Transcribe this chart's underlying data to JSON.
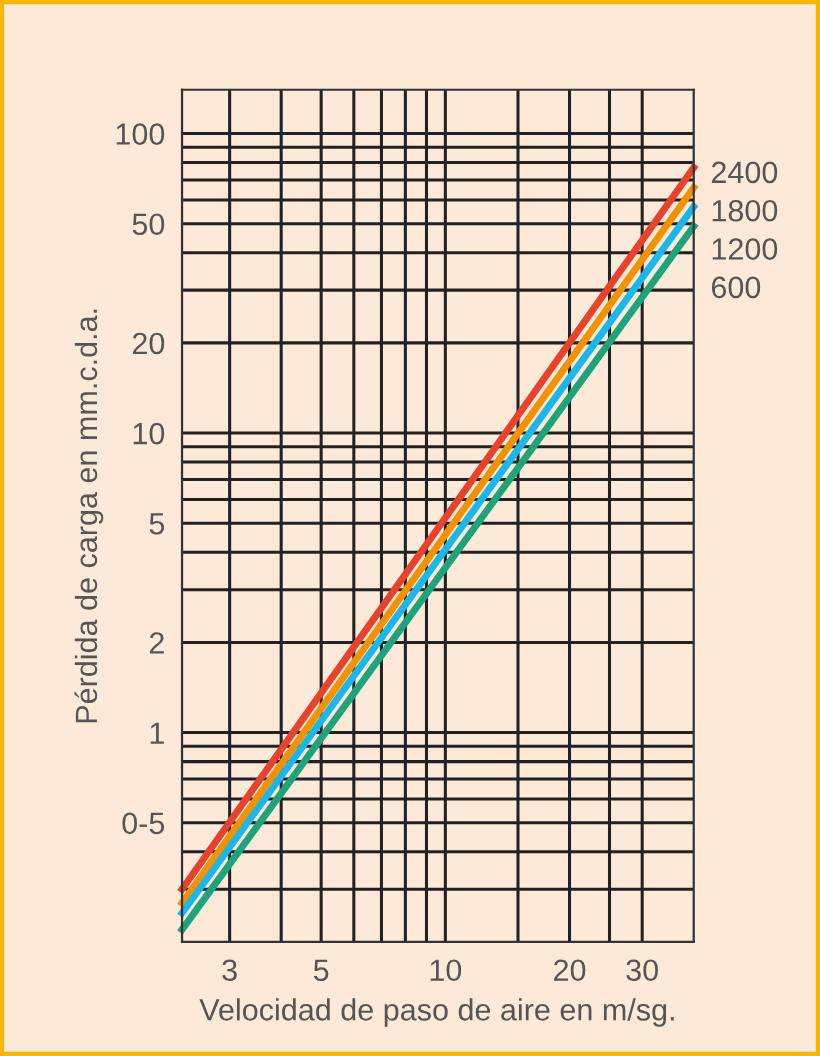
{
  "chart_data": {
    "type": "line",
    "xlabel": "Velocidad de paso de aire en m/sg.",
    "ylabel": "Pérdida de carga en mm.c.d.a.",
    "log": "xy",
    "grid": true,
    "legend": false,
    "marker": "none",
    "line_style": "solid",
    "x": [
      2.3,
      40
    ],
    "series": [
      {
        "name": "2400",
        "color": "#e8412c",
        "values": [
          0.3,
          77
        ]
      },
      {
        "name": "1800",
        "color": "#f39200",
        "values": [
          0.27,
          66
        ]
      },
      {
        "name": "1200",
        "color": "#1ab7ea",
        "values": [
          0.25,
          57
        ]
      },
      {
        "name": "600",
        "color": "#1fa37a",
        "values": [
          0.22,
          49
        ]
      }
    ],
    "xlim": [
      2.3,
      40
    ],
    "ylim": [
      0.2,
      140
    ],
    "xticks": [
      3,
      {
        "value": 4,
        "label": null
      },
      5,
      {
        "value": 6,
        "label": null
      },
      {
        "value": 7,
        "label": null
      },
      {
        "value": 8,
        "label": null
      },
      {
        "value": 9,
        "label": null
      },
      10,
      {
        "value": 15,
        "label": null
      },
      20,
      {
        "value": 25,
        "label": null
      },
      30
    ],
    "yticks": [
      {
        "value": 0.3,
        "label": null
      },
      {
        "value": 0.4,
        "label": null
      },
      {
        "value": 0.5,
        "label": "0-5"
      },
      {
        "value": 0.6,
        "label": null
      },
      {
        "value": 0.7,
        "label": null
      },
      {
        "value": 0.8,
        "label": null
      },
      {
        "value": 0.9,
        "label": null
      },
      1,
      2,
      {
        "value": 3,
        "label": null
      },
      {
        "value": 4,
        "label": null
      },
      5,
      {
        "value": 6,
        "label": null
      },
      {
        "value": 7,
        "label": null
      },
      {
        "value": 8,
        "label": null
      },
      {
        "value": 9,
        "label": null
      },
      10,
      20,
      {
        "value": 30,
        "label": null
      },
      {
        "value": 40,
        "label": null
      },
      50,
      {
        "value": 60,
        "label": null
      },
      {
        "value": 70,
        "label": null
      },
      {
        "value": 80,
        "label": null
      },
      {
        "value": 90,
        "label": null
      },
      100
    ]
  }
}
